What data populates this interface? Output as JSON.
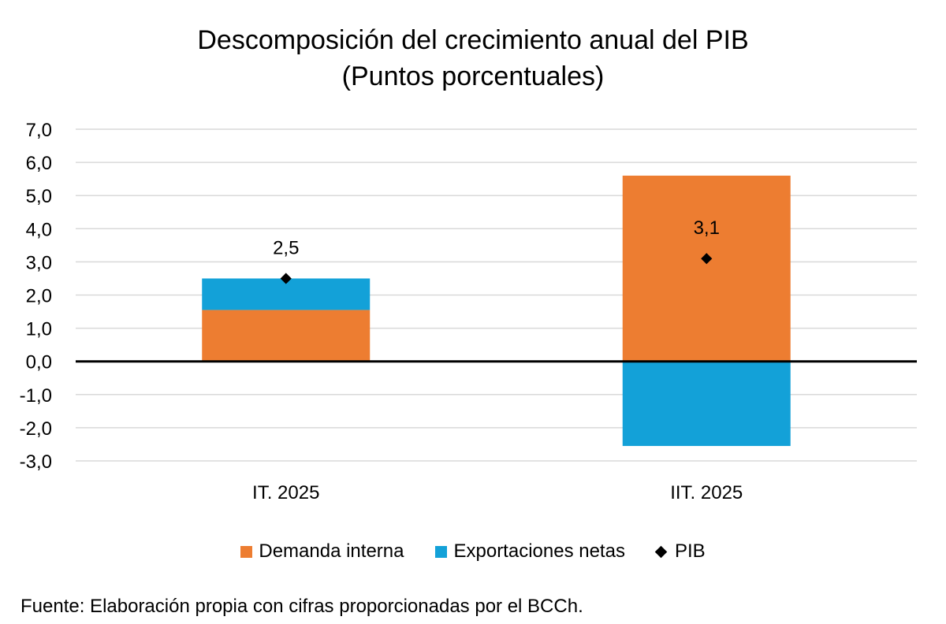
{
  "chart_data": {
    "type": "bar",
    "stacked": true,
    "title": "Descomposición del crecimiento anual del PIB",
    "subtitle": "(Puntos porcentuales)",
    "categories": [
      "IT. 2025",
      "IIT. 2025"
    ],
    "series": [
      {
        "name": "Demanda interna",
        "values": [
          1.55,
          5.6
        ],
        "color": "#ED7D31"
      },
      {
        "name": "Exportaciones netas",
        "values": [
          0.95,
          -2.55
        ],
        "color": "#13A1D8"
      }
    ],
    "line_series": {
      "name": "PIB",
      "values": [
        2.5,
        3.1
      ],
      "labels": [
        "2,5",
        "3,1"
      ],
      "marker": "diamond",
      "color": "#000000"
    },
    "ylim": [
      -3,
      7
    ],
    "yticks": [
      7,
      6,
      5,
      4,
      3,
      2,
      1,
      0,
      -1,
      -2,
      -3
    ],
    "ytick_labels": [
      "7,0",
      "6,0",
      "5,0",
      "4,0",
      "3,0",
      "2,0",
      "1,0",
      "0,0",
      "-1,0",
      "-2,0",
      "-3,0"
    ],
    "grid": true,
    "legend_position": "bottom",
    "source": "Fuente: Elaboración propia con cifras proporcionadas por el BCCh."
  }
}
